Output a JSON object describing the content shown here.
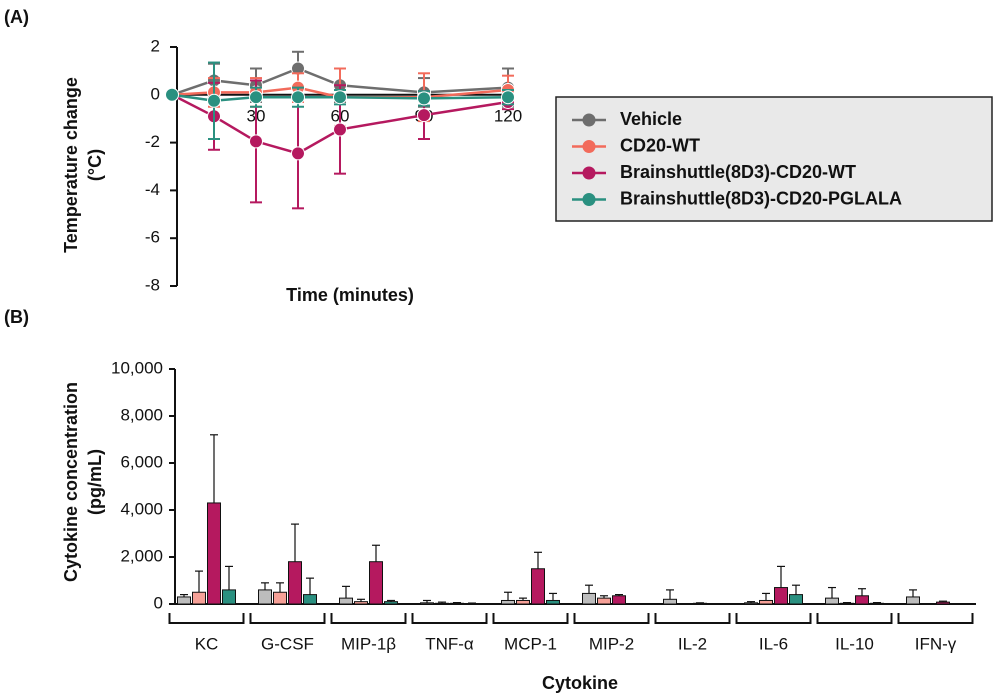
{
  "panels": [
    "(A)",
    "(B)"
  ],
  "chart_data": [
    {
      "type": "line",
      "xlabel": "Time (minutes)",
      "ylabel": [
        "Temperature change",
        "(°C)"
      ],
      "x": [
        0,
        15,
        30,
        45,
        60,
        90,
        120
      ],
      "xlim": [
        0,
        120
      ],
      "xticks": [
        30,
        60,
        90,
        120
      ],
      "ylim": [
        -8,
        2
      ],
      "yticks": [
        2,
        0,
        -2,
        -4,
        -6,
        -8
      ],
      "legend": "right",
      "series": [
        {
          "name": "Vehicle",
          "color": "#6e6e6e",
          "values": [
            0,
            0.6,
            0.4,
            1.1,
            0.4,
            0.1,
            0.3
          ],
          "errors": [
            0,
            0.7,
            0.7,
            0.7,
            0.7,
            0.6,
            0.8
          ]
        },
        {
          "name": "CD20-WT",
          "color": "#f26b5b",
          "values": [
            0,
            0.1,
            0.1,
            0.3,
            -0.1,
            -0.1,
            0.2
          ],
          "errors": [
            0,
            0.6,
            0.6,
            0.6,
            1.2,
            1.0,
            0.6
          ]
        },
        {
          "name": "Brainshuttle(8D3)-CD20-WT",
          "color": "#b5195f",
          "values": [
            0,
            -0.9,
            -1.95,
            -2.45,
            -1.45,
            -0.85,
            -0.3
          ],
          "errors": [
            0,
            1.4,
            2.55,
            2.3,
            1.85,
            1.0,
            0.3
          ]
        },
        {
          "name": "Brainshuttle(8D3)-CD20-PGLALA",
          "color": "#2a9080",
          "values": [
            0,
            -0.25,
            -0.1,
            -0.1,
            -0.1,
            -0.15,
            -0.1
          ],
          "errors": [
            0,
            1.6,
            0.4,
            0.4,
            0.3,
            0.3,
            0.3
          ]
        }
      ]
    },
    {
      "type": "bar",
      "xlabel": "Cytokine",
      "ylabel": [
        "Cytokine concentration",
        "(pg/mL)"
      ],
      "categories": [
        "KC",
        "G-CSF",
        "MIP-1β",
        "TNF-α",
        "MCP-1",
        "MIP-2",
        "IL-2",
        "IL-6",
        "IL-10",
        "IFN-γ"
      ],
      "ylim": [
        0,
        10000
      ],
      "yticks": [
        0,
        {
          "value": 2000,
          "label": "2,000"
        },
        {
          "value": 4000,
          "label": "4,000"
        },
        {
          "value": 6000,
          "label": "6,000"
        },
        {
          "value": 8000,
          "label": "8,000"
        },
        {
          "value": 10000,
          "label": "10,000"
        }
      ],
      "series": [
        {
          "name": "Vehicle",
          "color": "#bdbdbd",
          "values": [
            300,
            600,
            250,
            50,
            150,
            450,
            200,
            50,
            250,
            300
          ],
          "errors": [
            100,
            300,
            500,
            100,
            350,
            350,
            400,
            50,
            450,
            300
          ]
        },
        {
          "name": "CD20-WT",
          "color": "#f6a097",
          "values": [
            500,
            500,
            100,
            30,
            150,
            250,
            null,
            150,
            30,
            null
          ],
          "errors": [
            900,
            400,
            100,
            50,
            100,
            100,
            null,
            300,
            30,
            null
          ]
        },
        {
          "name": "Brainshuttle(8D3)-CD20-WT",
          "color": "#b5195f",
          "values": [
            4300,
            1800,
            1800,
            30,
            1500,
            350,
            30,
            700,
            350,
            80
          ],
          "errors": [
            2900,
            1600,
            700,
            30,
            700,
            50,
            20,
            900,
            300,
            40
          ]
        },
        {
          "name": "Brainshuttle(8D3)-CD20-PGLALA",
          "color": "#2a9080",
          "values": [
            600,
            400,
            100,
            20,
            150,
            null,
            null,
            400,
            30,
            null
          ],
          "errors": [
            1000,
            700,
            50,
            20,
            300,
            null,
            null,
            400,
            30,
            null
          ]
        }
      ]
    }
  ]
}
